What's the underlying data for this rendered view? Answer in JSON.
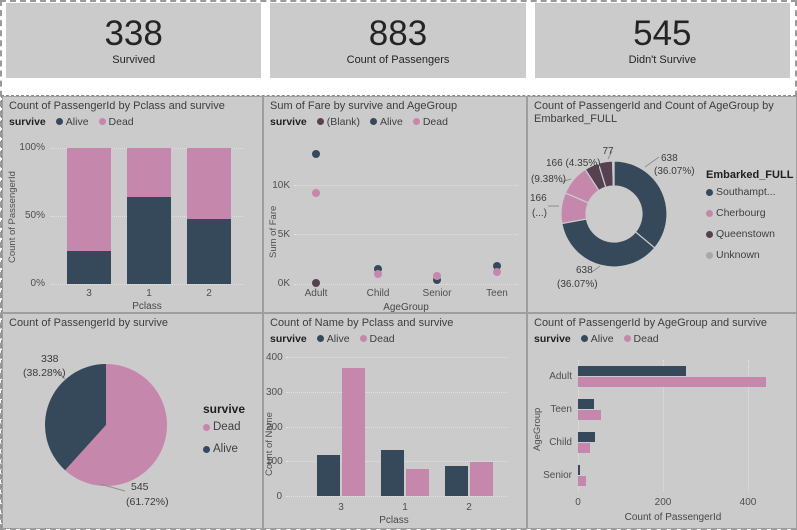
{
  "colors": {
    "alive": "#36495a",
    "dead": "#c687ad",
    "blank": "#564150",
    "unknown": "#a8a8a8",
    "panel_bg": "#cbcbcb"
  },
  "kpis": [
    {
      "value": "338",
      "label": "Survived"
    },
    {
      "value": "883",
      "label": "Count of Passengers"
    },
    {
      "value": "545",
      "label": "Didn't Survive"
    }
  ],
  "chart_data": [
    {
      "type": "bar",
      "variant": "stacked-100",
      "title": "Count of PassengerId by Pclass and survive",
      "legend_title": "survive",
      "legend": [
        {
          "label": "Alive",
          "color": "#36495a"
        },
        {
          "label": "Dead",
          "color": "#c687ad"
        }
      ],
      "categories": [
        "3",
        "1",
        "2"
      ],
      "series": [
        {
          "name": "Alive",
          "color": "#36495a",
          "pct": [
            24,
            64,
            48
          ]
        },
        {
          "name": "Dead",
          "color": "#c687ad",
          "pct": [
            76,
            36,
            52
          ]
        }
      ],
      "yticks": [
        "100%",
        "50%",
        "0%"
      ],
      "xlabel": "Pclass",
      "ylabel": "Count of PassengerId",
      "ylim": [
        "0%",
        "100%"
      ]
    },
    {
      "type": "scatter",
      "title": "Sum of Fare by survive and AgeGroup",
      "legend_title": "survive",
      "legend": [
        {
          "label": "(Blank)",
          "color": "#564150"
        },
        {
          "label": "Alive",
          "color": "#36495a"
        },
        {
          "label": "Dead",
          "color": "#c687ad"
        }
      ],
      "categories": [
        "Adult",
        "Child",
        "Senior",
        "Teen"
      ],
      "series": [
        {
          "name": "(Blank)",
          "color": "#564150",
          "values": [
            0.1,
            null,
            null,
            null
          ]
        },
        {
          "name": "Alive",
          "color": "#36495a",
          "values": [
            13.1,
            1.5,
            0.4,
            1.8
          ]
        },
        {
          "name": "Dead",
          "color": "#c687ad",
          "values": [
            9.2,
            1.0,
            0.85,
            1.25
          ]
        }
      ],
      "unit": "K",
      "yticks": [
        "10K",
        "5K",
        "0K"
      ],
      "ylim": [
        0,
        14
      ],
      "xlabel": "AgeGroup",
      "ylabel": "Sum of Fare"
    },
    {
      "type": "donut",
      "title": "Count of PassengerId and Count of AgeGroup by Embarked_FULL",
      "legend_title": "Embarked_FULL",
      "legend": [
        {
          "label": "Southampt...",
          "color": "#36495a"
        },
        {
          "label": "Cherbourg",
          "color": "#c687ad"
        },
        {
          "label": "Queenstown",
          "color": "#564150"
        },
        {
          "label": "Unknown",
          "color": "#a8a8a8"
        }
      ],
      "slices": [
        {
          "name": "Southampton (Count of PassengerId)",
          "value": 638,
          "pct": 36.07,
          "color": "#36495a"
        },
        {
          "name": "Southampton (Count of AgeGroup)",
          "value": 638,
          "pct": 36.07,
          "color": "#36495a"
        },
        {
          "name": "Cherbourg (Count of PassengerId)",
          "value": 166,
          "pct": 9.38,
          "color": "#c687ad"
        },
        {
          "name": "Cherbourg (Count of AgeGroup)",
          "value": 166,
          "pct": 9.38,
          "color": "#c687ad"
        },
        {
          "name": "Queenstown (Count of PassengerId)",
          "value": 77,
          "pct": 4.35,
          "color": "#564150"
        },
        {
          "name": "Queenstown (Count of AgeGroup)",
          "value": 77,
          "pct": 4.35,
          "color": "#564150"
        },
        {
          "name": "Unknown",
          "value": null,
          "pct": 0.4,
          "color": "#a8a8a8"
        }
      ],
      "callout_labels": [
        "77",
        "166 (4.35%)",
        "(9.38%)",
        "166",
        "(...)",
        "638",
        "(36.07%)",
        "638",
        "(36.07%)"
      ]
    },
    {
      "type": "pie",
      "title": "Count of PassengerId by survive",
      "legend_title": "survive",
      "legend": [
        {
          "label": "Dead",
          "color": "#c687ad"
        },
        {
          "label": "Alive",
          "color": "#36495a"
        }
      ],
      "slices": [
        {
          "name": "Dead",
          "value": 545,
          "pct": 61.72,
          "color": "#c687ad"
        },
        {
          "name": "Alive",
          "value": 338,
          "pct": 38.28,
          "color": "#36495a"
        }
      ],
      "callout_labels": [
        "338",
        "(38.28%)",
        "545",
        "(61.72%)"
      ]
    },
    {
      "type": "column",
      "title": "Count of Name by Pclass and survive",
      "legend_title": "survive",
      "legend": [
        {
          "label": "Alive",
          "color": "#36495a"
        },
        {
          "label": "Dead",
          "color": "#c687ad"
        }
      ],
      "categories": [
        "3",
        "1",
        "2"
      ],
      "series": [
        {
          "name": "Alive",
          "color": "#36495a",
          "values": [
            118,
            133,
            87
          ]
        },
        {
          "name": "Dead",
          "color": "#c687ad",
          "values": [
            368,
            77,
            97
          ]
        }
      ],
      "yticks": [
        0,
        100,
        200,
        300,
        400
      ],
      "ylim": [
        0,
        400
      ],
      "xlabel": "Pclass",
      "ylabel": "Count of Name"
    },
    {
      "type": "hbar",
      "title": "Count of PassengerId by AgeGroup and survive",
      "legend_title": "survive",
      "legend": [
        {
          "label": "Alive",
          "color": "#36495a"
        },
        {
          "label": "Dead",
          "color": "#c687ad"
        }
      ],
      "categories": [
        "Adult",
        "Teen",
        "Child",
        "Senior"
      ],
      "series": [
        {
          "name": "Alive",
          "color": "#36495a",
          "values": [
            253,
            38,
            40,
            5
          ]
        },
        {
          "name": "Dead",
          "color": "#c687ad",
          "values": [
            443,
            55,
            28,
            18
          ]
        }
      ],
      "xticks": [
        0,
        200,
        400
      ],
      "xlim": [
        0,
        440
      ],
      "xlabel": "Count of PassengerId",
      "ylabel": "AgeGroup"
    }
  ]
}
